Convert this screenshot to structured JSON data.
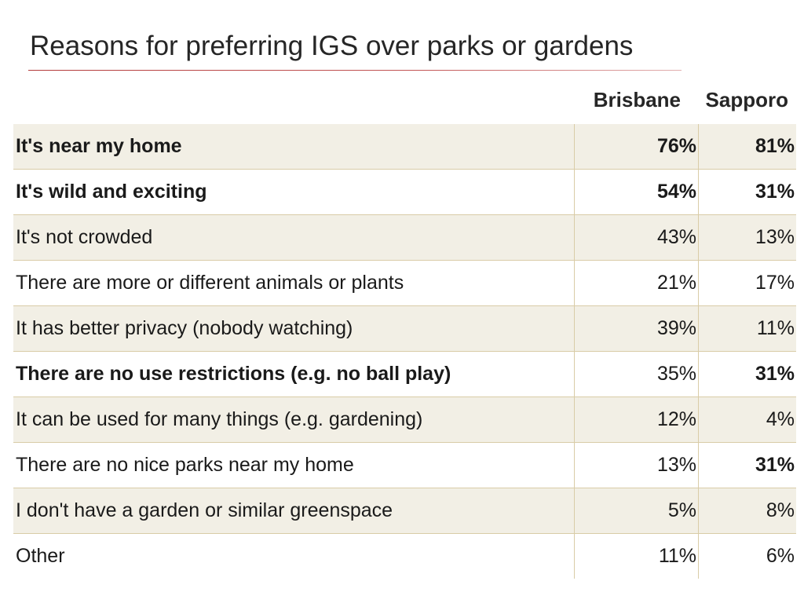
{
  "chart_data": {
    "type": "table",
    "title": "Reasons for preferring IGS over parks or gardens",
    "columns": [
      "Brisbane",
      "Sapporo"
    ],
    "rows": [
      {
        "label": "It's near my home",
        "values": [
          "76%",
          "81%"
        ],
        "label_bold": true,
        "bold": [
          true,
          true
        ]
      },
      {
        "label": "It's wild and exciting",
        "values": [
          "54%",
          "31%"
        ],
        "label_bold": true,
        "bold": [
          true,
          true
        ]
      },
      {
        "label": "It's not crowded",
        "values": [
          "43%",
          "13%"
        ],
        "label_bold": false,
        "bold": [
          false,
          false
        ]
      },
      {
        "label": "There are more or different animals or plants",
        "values": [
          "21%",
          "17%"
        ],
        "label_bold": false,
        "bold": [
          false,
          false
        ]
      },
      {
        "label": "It has better privacy (nobody watching)",
        "values": [
          "39%",
          "11%"
        ],
        "label_bold": false,
        "bold": [
          false,
          false
        ]
      },
      {
        "label": "There are no use restrictions (e.g. no ball play)",
        "values": [
          "35%",
          "31%"
        ],
        "label_bold": true,
        "bold": [
          false,
          true
        ]
      },
      {
        "label": "It can be used for many things (e.g. gardening)",
        "values": [
          "12%",
          "4%"
        ],
        "label_bold": false,
        "bold": [
          false,
          false
        ]
      },
      {
        "label": "There are no nice parks near my home",
        "values": [
          "13%",
          "31%"
        ],
        "label_bold": false,
        "bold": [
          false,
          true
        ]
      },
      {
        "label": "I don't have a garden or similar greenspace",
        "values": [
          "5%",
          "8%"
        ],
        "label_bold": false,
        "bold": [
          false,
          false
        ]
      },
      {
        "label": "Other",
        "values": [
          "11%",
          "6%"
        ],
        "label_bold": false,
        "bold": [
          false,
          false
        ]
      }
    ]
  }
}
